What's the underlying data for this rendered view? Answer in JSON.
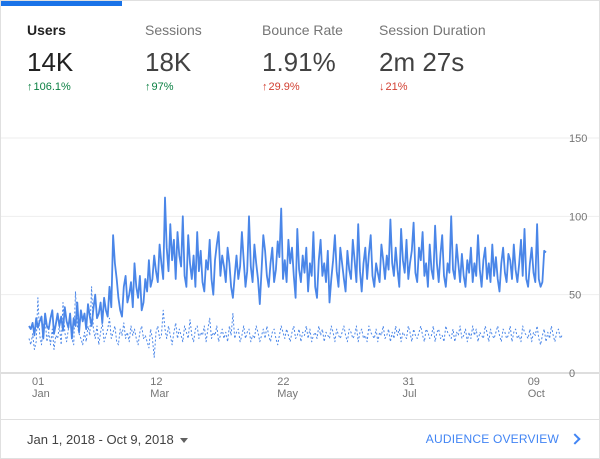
{
  "metrics": [
    {
      "label": "Users",
      "value": "14K",
      "change": "106.1%",
      "direction": "up",
      "active": true
    },
    {
      "label": "Sessions",
      "value": "18K",
      "change": "97%",
      "direction": "up",
      "active": false
    },
    {
      "label": "Bounce Rate",
      "value": "1.91%",
      "change": "29.9%",
      "direction": "up-bad",
      "active": false
    },
    {
      "label": "Session Duration",
      "value": "2m 27s",
      "change": "21%",
      "direction": "down",
      "active": false
    }
  ],
  "icons": {
    "change_up": "arrow-up-icon",
    "change_down": "arrow-down-icon",
    "dropdown": "caret-down-icon",
    "link": "chevron-right-icon"
  },
  "colors": {
    "accent": "#1a73e8",
    "series_primary": "#4a86e8",
    "positive": "#0b8043",
    "negative": "#d23f31",
    "link": "#4285f4"
  },
  "chart_data": {
    "type": "line",
    "ylim": [
      0,
      150
    ],
    "yticks": [
      0,
      50,
      100,
      150
    ],
    "xticks": [
      {
        "day": "01",
        "month": "Jan",
        "index": 0
      },
      {
        "day": "12",
        "month": "Mar",
        "index": 70
      },
      {
        "day": "22",
        "month": "May",
        "index": 141
      },
      {
        "day": "31",
        "month": "Jul",
        "index": 211
      },
      {
        "day": "09",
        "month": "Oct",
        "index": 281
      }
    ],
    "grid": true,
    "series": [
      {
        "style": "solid",
        "values": [
          30,
          28,
          32,
          24,
          35,
          29,
          33,
          36,
          22,
          38,
          30,
          28,
          35,
          40,
          25,
          31,
          38,
          30,
          36,
          27,
          42,
          33,
          29,
          38,
          22,
          35,
          30,
          45,
          26,
          40,
          33,
          38,
          28,
          44,
          36,
          30,
          41,
          50,
          35,
          38,
          45,
          32,
          48,
          40,
          36,
          55,
          42,
          88,
          70,
          60,
          48,
          40,
          36,
          55,
          62,
          45,
          50,
          58,
          42,
          70,
          55,
          48,
          62,
          40,
          45,
          60,
          52,
          72,
          55,
          60,
          75,
          65,
          58,
          82,
          70,
          60,
          112,
          80,
          65,
          95,
          72,
          85,
          60,
          90,
          75,
          68,
          100,
          62,
          55,
          88,
          70,
          60,
          75,
          55,
          90,
          65,
          78,
          58,
          52,
          72,
          66,
          85,
          60,
          50,
          72,
          82,
          90,
          62,
          75,
          68,
          58,
          80,
          70,
          55,
          48,
          62,
          75,
          60,
          68,
          90,
          72,
          55,
          65,
          100,
          68,
          58,
          82,
          70,
          60,
          44,
          66,
          88,
          78,
          62,
          55,
          70,
          80,
          58,
          66,
          84,
          74,
          105,
          60,
          72,
          58,
          85,
          70,
          80,
          62,
          48,
          92,
          66,
          58,
          75,
          64,
          80,
          52,
          70,
          62,
          90,
          55,
          48,
          72,
          85,
          62,
          70,
          58,
          78,
          45,
          60,
          72,
          88,
          65,
          55,
          80,
          70,
          60,
          52,
          78,
          66,
          60,
          85,
          72,
          58,
          95,
          65,
          52,
          70,
          80,
          60,
          76,
          88,
          62,
          55,
          70,
          64,
          58,
          82,
          72,
          60,
          75,
          66,
          98,
          70,
          62,
          80,
          66,
          55,
          92,
          72,
          64,
          85,
          60,
          70,
          78,
          96,
          64,
          58,
          80,
          72,
          90,
          62,
          70,
          55,
          82,
          66,
          60,
          94,
          70,
          58,
          76,
          88,
          62,
          55,
          70,
          64,
          100,
          66,
          60,
          82,
          70,
          58,
          76,
          62,
          55,
          72,
          64,
          80,
          58,
          70,
          62,
          88,
          66,
          55,
          72,
          80,
          60,
          70,
          58,
          82,
          62,
          74,
          60,
          52,
          70,
          80,
          64,
          58,
          76,
          72,
          60,
          82,
          66,
          58,
          70,
          85,
          62,
          92,
          60,
          55,
          70,
          80,
          64,
          58,
          95,
          60,
          55,
          58,
          78,
          77
        ]
      },
      {
        "style": "dotted",
        "values": [
          22,
          18,
          25,
          15,
          20,
          48,
          24,
          18,
          30,
          35,
          20,
          26,
          18,
          28,
          15,
          24,
          22,
          30,
          18,
          45,
          26,
          20,
          28,
          38,
          22,
          18,
          52,
          30,
          25,
          22,
          18,
          26,
          20,
          30,
          24,
          55,
          28,
          22,
          30,
          18,
          26,
          32,
          20,
          24,
          28,
          35,
          22,
          26,
          30,
          20,
          18,
          28,
          24,
          32,
          22,
          26,
          20,
          30,
          24,
          28,
          22,
          18,
          26,
          30,
          22,
          24,
          20,
          16,
          28,
          22,
          10,
          26,
          30,
          22,
          24,
          40,
          28,
          22,
          30,
          24,
          18,
          26,
          32,
          22,
          28,
          24,
          20,
          30,
          26,
          22,
          34,
          24,
          20,
          28,
          30,
          22,
          26,
          24,
          30,
          20,
          28,
          35,
          22,
          26,
          24,
          30,
          20,
          24,
          28,
          22,
          26,
          20,
          30,
          24,
          38,
          22,
          26,
          28,
          20,
          24,
          30,
          22,
          26,
          28,
          20,
          24,
          22,
          30,
          26,
          20,
          24,
          28,
          22,
          30,
          24,
          20,
          26,
          28,
          22,
          18,
          24,
          30,
          26,
          22,
          28,
          24,
          20,
          26,
          30,
          22,
          24,
          28,
          20,
          26,
          24,
          30,
          22,
          28,
          20,
          24,
          26,
          22,
          30,
          24,
          28,
          20,
          26,
          24,
          22,
          30,
          26,
          20,
          28,
          24,
          22,
          26,
          30,
          24,
          20,
          28,
          26,
          22,
          24,
          30,
          20,
          26,
          28,
          22,
          24,
          20,
          30,
          26,
          24,
          22,
          28,
          20,
          26,
          24,
          30,
          22,
          24,
          28,
          20,
          26,
          22,
          30,
          24,
          28,
          20,
          26,
          24,
          22,
          30,
          26,
          20,
          28,
          24,
          22,
          26,
          30,
          24,
          20,
          28,
          26,
          22,
          24,
          30,
          20,
          26,
          28,
          22,
          24,
          20,
          30,
          26,
          24,
          22,
          28,
          20,
          26,
          24,
          30,
          22,
          24,
          28,
          20,
          26,
          22,
          30,
          24,
          28,
          20,
          26,
          24,
          22,
          30,
          26,
          20,
          28,
          24,
          22,
          26,
          30,
          24,
          20,
          28,
          26,
          22,
          24,
          30,
          20,
          26,
          28,
          22,
          24,
          20,
          30,
          26,
          24,
          22,
          28,
          20,
          26,
          24,
          30,
          22,
          18,
          24,
          28,
          20,
          26,
          22,
          30,
          24,
          20,
          26,
          28,
          22,
          24
        ]
      }
    ]
  },
  "footer": {
    "date_range": "Jan 1, 2018 - Oct 9, 2018",
    "overview_link": "AUDIENCE OVERVIEW"
  }
}
